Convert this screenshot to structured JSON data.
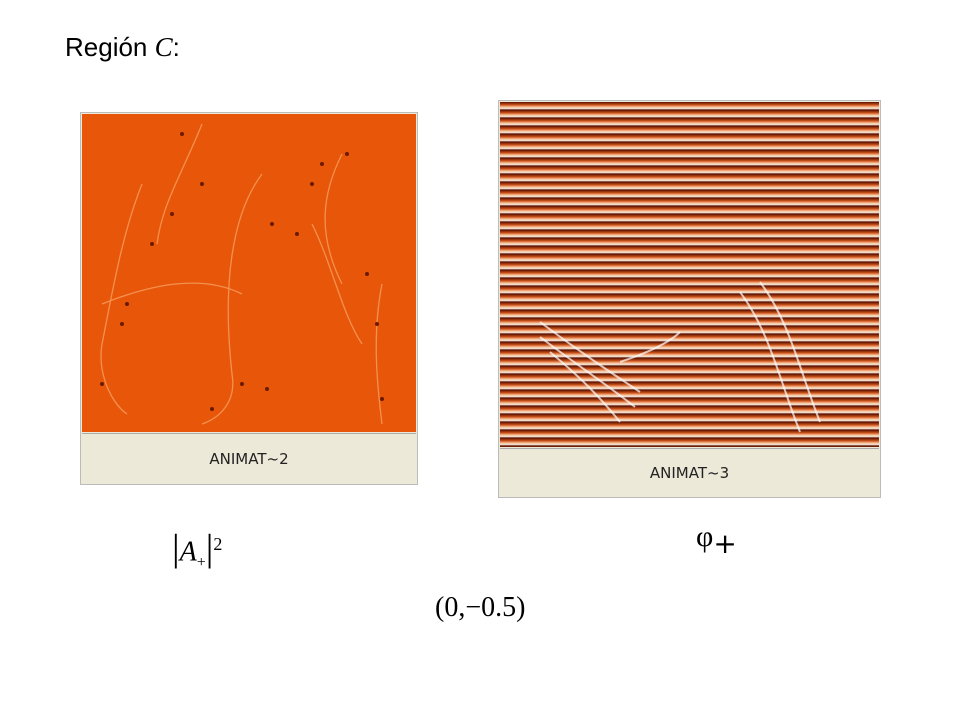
{
  "title": {
    "text": "Región",
    "variable": "C",
    "colon": ":"
  },
  "panels": [
    {
      "caption": "ANIMAT~2",
      "symbol": "A",
      "subscript": "+",
      "exponent": "2"
    },
    {
      "caption": "ANIMAT~3",
      "symbol": "φ",
      "subscript": "+"
    }
  ],
  "parameters": "(0,−0.5)"
}
